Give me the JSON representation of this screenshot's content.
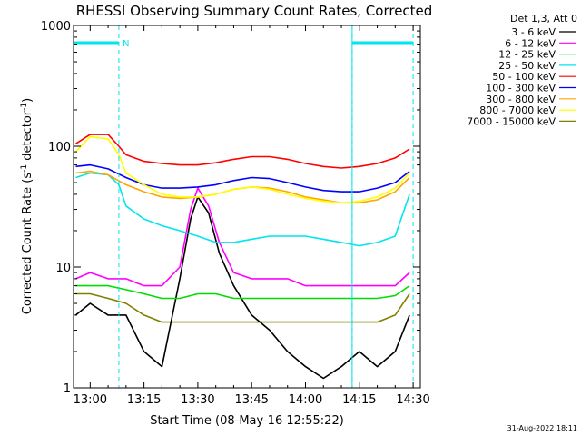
{
  "chart_data": {
    "type": "line",
    "title": "RHESSI Observing Summary Count Rates, Corrected",
    "xlabel": "Start Time (08-May-16 12:55:22)",
    "ylabel_main": "Corrected Count Rate (s",
    "ylabel_sup1": "-1",
    "ylabel_mid": " detector",
    "ylabel_sup2": "-1",
    "ylabel_end": ")",
    "y_scale": "log",
    "ylim": [
      1,
      1000
    ],
    "xlim": [
      "12:55:22",
      "14:32:00"
    ],
    "x_tick_labels": [
      "13:00",
      "13:15",
      "13:30",
      "13:45",
      "14:00",
      "14:15",
      "14:30"
    ],
    "y_tick_labels": [
      "1",
      "10",
      "100",
      "1000"
    ],
    "legend_header": "Det 1,3, Att 0",
    "legend_placement": "right",
    "footer_date": "31-Aug-2022 18:11",
    "flag_label": "N",
    "event_markers": [
      {
        "start": "12:55:22",
        "end": "13:08"
      },
      {
        "start": "14:13",
        "end": "14:30"
      }
    ],
    "vertical_markers": [
      "12:55:22",
      "13:08",
      "14:13",
      "14:30"
    ],
    "series": [
      {
        "name": "3 - 6 keV",
        "color": "#000000",
        "x": [
          "12:56",
          "13:00",
          "13:05",
          "13:10",
          "13:15",
          "13:20",
          "13:25",
          "13:28",
          "13:30",
          "13:33",
          "13:36",
          "13:40",
          "13:45",
          "13:50",
          "13:55",
          "14:00",
          "14:05",
          "14:10",
          "14:15",
          "14:20",
          "14:25",
          "14:29"
        ],
        "values": [
          4,
          5,
          4,
          4,
          2,
          1.5,
          8,
          25,
          38,
          28,
          13,
          7,
          4,
          3,
          2,
          1.5,
          1.2,
          1.5,
          2,
          1.5,
          2,
          4
        ]
      },
      {
        "name": "6 - 12 keV",
        "color": "#ff00ff",
        "x": [
          "12:56",
          "13:00",
          "13:05",
          "13:10",
          "13:15",
          "13:20",
          "13:25",
          "13:28",
          "13:30",
          "13:33",
          "13:36",
          "13:40",
          "13:45",
          "13:50",
          "13:55",
          "14:00",
          "14:05",
          "14:10",
          "14:15",
          "14:20",
          "14:25",
          "14:29"
        ],
        "values": [
          8,
          9,
          8,
          8,
          7,
          7,
          10,
          30,
          45,
          32,
          16,
          9,
          8,
          8,
          8,
          7,
          7,
          7,
          7,
          7,
          7,
          9
        ]
      },
      {
        "name": "12 - 25 keV",
        "color": "#00dd00",
        "x": [
          "12:56",
          "13:00",
          "13:05",
          "13:10",
          "13:15",
          "13:20",
          "13:25",
          "13:30",
          "13:35",
          "13:40",
          "13:45",
          "13:50",
          "13:55",
          "14:00",
          "14:05",
          "14:10",
          "14:15",
          "14:20",
          "14:25",
          "14:29"
        ],
        "values": [
          7,
          7,
          7,
          6.5,
          6,
          5.5,
          5.5,
          6,
          6,
          5.5,
          5.5,
          5.5,
          5.5,
          5.5,
          5.5,
          5.5,
          5.5,
          5.5,
          5.8,
          7
        ]
      },
      {
        "name": "25 - 50 keV",
        "color": "#00e5ee",
        "x": [
          "12:56",
          "13:00",
          "13:05",
          "13:08",
          "13:10",
          "13:15",
          "13:20",
          "13:25",
          "13:30",
          "13:35",
          "13:40",
          "13:45",
          "13:50",
          "13:55",
          "14:00",
          "14:05",
          "14:10",
          "14:15",
          "14:20",
          "14:25",
          "14:29"
        ],
        "values": [
          55,
          60,
          58,
          48,
          32,
          25,
          22,
          20,
          18,
          16,
          16,
          17,
          18,
          18,
          18,
          17,
          16,
          15,
          16,
          18,
          40
        ]
      },
      {
        "name": "50 - 100 keV",
        "color": "#ff0000",
        "x": [
          "12:56",
          "13:00",
          "13:05",
          "13:08",
          "13:10",
          "13:15",
          "13:20",
          "13:25",
          "13:30",
          "13:35",
          "13:40",
          "13:45",
          "13:50",
          "13:55",
          "14:00",
          "14:05",
          "14:10",
          "14:15",
          "14:20",
          "14:25",
          "14:29"
        ],
        "values": [
          105,
          125,
          125,
          100,
          85,
          75,
          72,
          70,
          70,
          73,
          78,
          82,
          82,
          78,
          72,
          68,
          66,
          68,
          72,
          80,
          95
        ]
      },
      {
        "name": "100 - 300 keV",
        "color": "#0000ff",
        "x": [
          "12:56",
          "13:00",
          "13:05",
          "13:10",
          "13:15",
          "13:20",
          "13:25",
          "13:30",
          "13:35",
          "13:40",
          "13:45",
          "13:50",
          "13:55",
          "14:00",
          "14:05",
          "14:10",
          "14:15",
          "14:20",
          "14:25",
          "14:29"
        ],
        "values": [
          68,
          70,
          65,
          55,
          48,
          45,
          45,
          46,
          48,
          52,
          55,
          54,
          50,
          46,
          43,
          42,
          42,
          45,
          50,
          62
        ]
      },
      {
        "name": "300 - 800 keV",
        "color": "#ffa500",
        "x": [
          "12:56",
          "13:00",
          "13:05",
          "13:10",
          "13:15",
          "13:20",
          "13:25",
          "13:30",
          "13:35",
          "13:40",
          "13:45",
          "13:50",
          "13:55",
          "14:00",
          "14:05",
          "14:10",
          "14:15",
          "14:20",
          "14:25",
          "14:29"
        ],
        "values": [
          60,
          62,
          58,
          48,
          42,
          38,
          37,
          38,
          40,
          44,
          46,
          45,
          42,
          38,
          36,
          34,
          34,
          36,
          42,
          55
        ]
      },
      {
        "name": "800 - 7000 keV",
        "color": "#ffff00",
        "x": [
          "12:56",
          "13:00",
          "13:05",
          "13:08",
          "13:10",
          "13:15",
          "13:20",
          "13:25",
          "13:30",
          "13:35",
          "13:40",
          "13:45",
          "13:50",
          "13:55",
          "14:00",
          "14:05",
          "14:10",
          "14:15",
          "14:20",
          "14:25",
          "14:29"
        ],
        "values": [
          90,
          120,
          115,
          85,
          60,
          48,
          40,
          38,
          38,
          40,
          44,
          46,
          44,
          40,
          37,
          35,
          34,
          35,
          38,
          45,
          60
        ]
      },
      {
        "name": "7000 - 15000 keV",
        "color": "#808000",
        "x": [
          "12:56",
          "13:00",
          "13:05",
          "13:10",
          "13:15",
          "13:20",
          "13:25",
          "13:30",
          "13:35",
          "13:40",
          "13:45",
          "13:50",
          "13:55",
          "14:00",
          "14:05",
          "14:10",
          "14:15",
          "14:20",
          "14:25",
          "14:29"
        ],
        "values": [
          6,
          6,
          5.5,
          5,
          4,
          3.5,
          3.5,
          3.5,
          3.5,
          3.5,
          3.5,
          3.5,
          3.5,
          3.5,
          3.5,
          3.5,
          3.5,
          3.5,
          4,
          6
        ]
      }
    ]
  }
}
